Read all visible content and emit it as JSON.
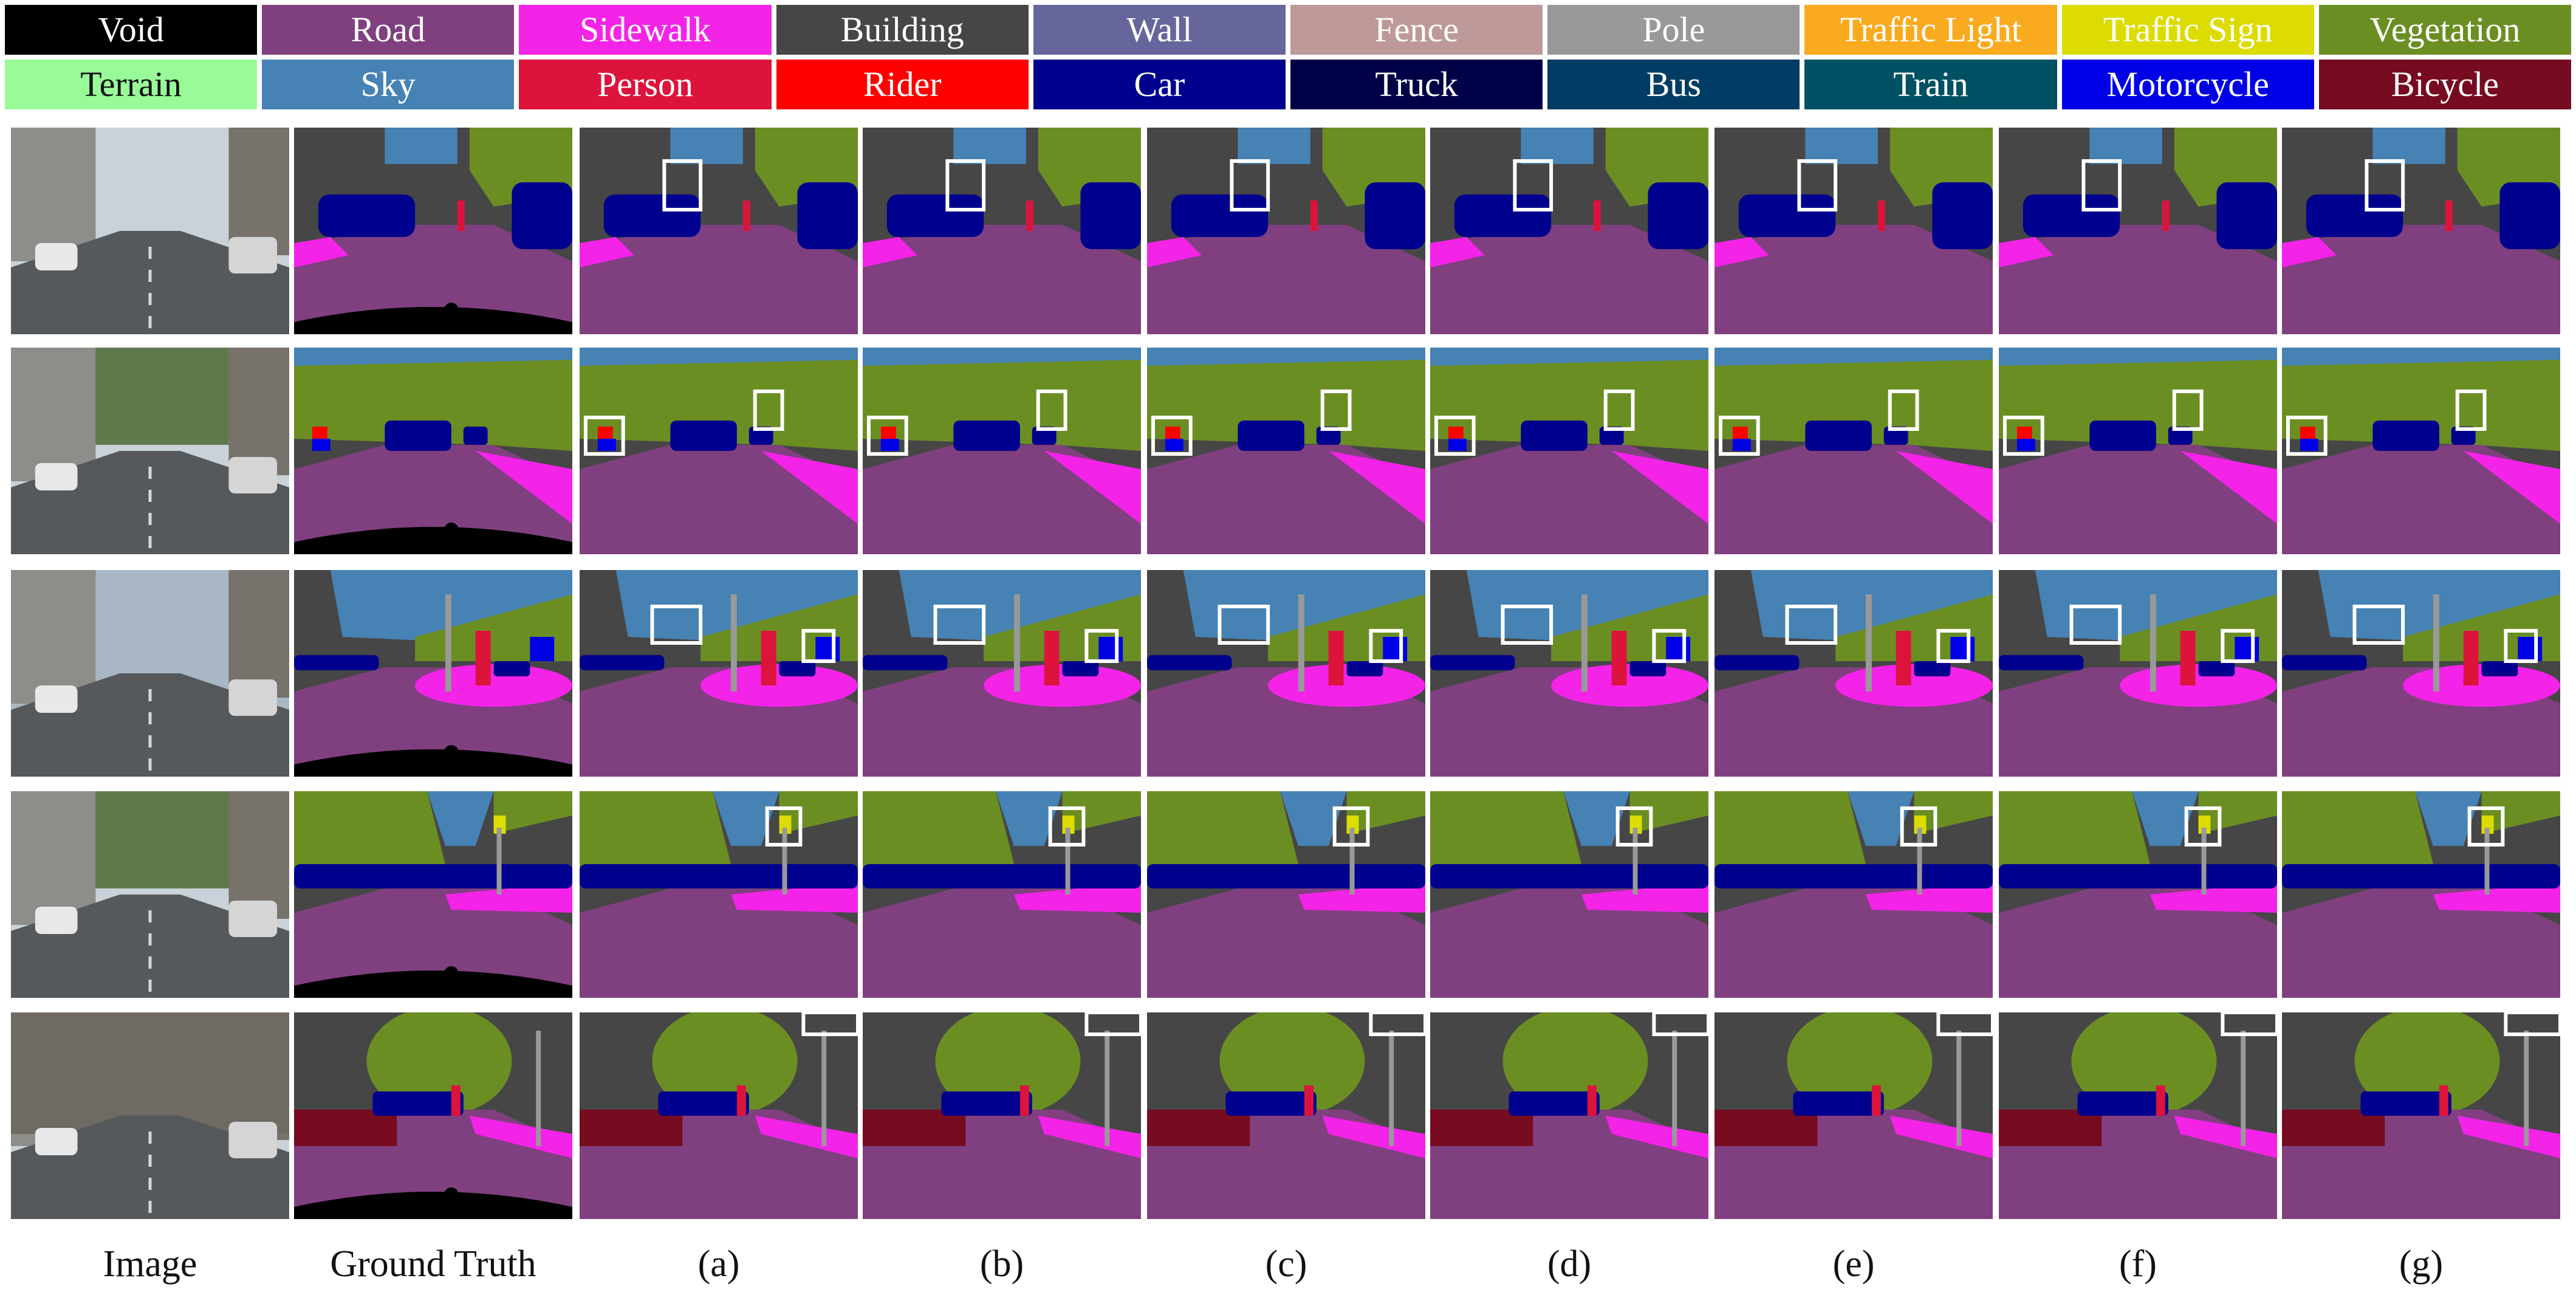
{
  "legend": [
    {
      "label": "Void",
      "color": "#000000",
      "text_color": "#ffffff"
    },
    {
      "label": "Road",
      "color": "#804080",
      "text_color": "#ffffff"
    },
    {
      "label": "Sidewalk",
      "color": "#f423e8",
      "text_color": "#ffffff"
    },
    {
      "label": "Building",
      "color": "#464646",
      "text_color": "#ffffff"
    },
    {
      "label": "Wall",
      "color": "#66669c",
      "text_color": "#ffffff"
    },
    {
      "label": "Fence",
      "color": "#be9999",
      "text_color": "#ffffff"
    },
    {
      "label": "Pole",
      "color": "#999999",
      "text_color": "#ffffff"
    },
    {
      "label": "Traffic Light",
      "color": "#faaa1e",
      "text_color": "#ffffff"
    },
    {
      "label": "Traffic Sign",
      "color": "#dcdc00",
      "text_color": "#ffffff"
    },
    {
      "label": "Vegetation",
      "color": "#6b8e23",
      "text_color": "#ffffff"
    },
    {
      "label": "Terrain",
      "color": "#98fb98",
      "text_color": "#111111"
    },
    {
      "label": "Sky",
      "color": "#4682b4",
      "text_color": "#ffffff"
    },
    {
      "label": "Person",
      "color": "#dc143c",
      "text_color": "#ffffff"
    },
    {
      "label": "Rider",
      "color": "#ff0000",
      "text_color": "#ffffff"
    },
    {
      "label": "Car",
      "color": "#00008e",
      "text_color": "#ffffff"
    },
    {
      "label": "Truck",
      "color": "#000046",
      "text_color": "#ffffff"
    },
    {
      "label": "Bus",
      "color": "#003c64",
      "text_color": "#ffffff"
    },
    {
      "label": "Train",
      "color": "#005064",
      "text_color": "#ffffff"
    },
    {
      "label": "Motorcycle",
      "color": "#0000e6",
      "text_color": "#ffffff"
    },
    {
      "label": "Bicycle",
      "color": "#770b20",
      "text_color": "#ffffff"
    }
  ],
  "columns": [
    {
      "key": "image",
      "label": "Image"
    },
    {
      "key": "gt",
      "label": "Ground Truth"
    },
    {
      "key": "a",
      "label": "(a)"
    },
    {
      "key": "b",
      "label": "(b)"
    },
    {
      "key": "c",
      "label": "(c)"
    },
    {
      "key": "d",
      "label": "(d)"
    },
    {
      "key": "e",
      "label": "(e)"
    },
    {
      "key": "f",
      "label": "(f)"
    },
    {
      "key": "g",
      "label": "(g)"
    }
  ],
  "rows": [
    {
      "scene": "scene-1-street-parked-cars"
    },
    {
      "scene": "scene-2-road-with-cars-and-trees"
    },
    {
      "scene": "scene-3-intersection-pedestrians"
    },
    {
      "scene": "scene-4-street-traffic-sign"
    },
    {
      "scene": "scene-5-street-bicycles"
    }
  ]
}
